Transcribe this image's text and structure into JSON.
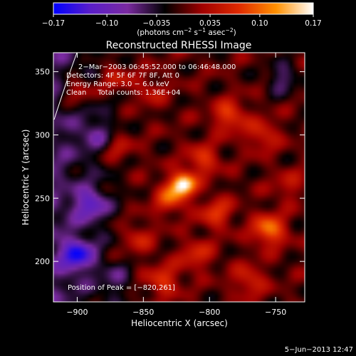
{
  "chart_data": {
    "type": "heatmap",
    "title": "Reconstructed RHESSI Image",
    "xlabel": "Heliocentric X (arcsec)",
    "ylabel": "Heliocentric Y (arcsec)",
    "xlim": [
      -918,
      -728
    ],
    "ylim": [
      168,
      365
    ],
    "x_ticks": [
      -900,
      -850,
      -800,
      -750
    ],
    "y_ticks": [
      200,
      250,
      300,
      350
    ],
    "colorbar": {
      "range": [
        -0.17,
        0.17
      ],
      "ticks": [
        -0.17,
        -0.1,
        -0.035,
        0.035,
        0.1,
        0.17
      ],
      "tick_labels": [
        "−0.17",
        "−0.10",
        "−0.035",
        "0.035",
        "0.10",
        "0.17"
      ],
      "label_main": "(photons cm",
      "label_exp1": "−2",
      "label_mid1": " s",
      "label_exp2": "−1",
      "label_mid2": " asec",
      "label_exp3": "−2",
      "label_end": ")",
      "stops": [
        "#0000ff",
        "#5a1ec8",
        "#7a2aa0",
        "#000000",
        "#a00000",
        "#e02a00",
        "#ff9000",
        "#ffffff"
      ]
    },
    "annotations": [
      "2−Mar−2003 06:45:52.000 to 06:46:48.000",
      "Detectors: 4F 5F 6F 7F 8F, Att 0",
      "Energy Range: 3.0 − 6.0 keV",
      "Clean     Total counts: 1.36E+04"
    ],
    "peak_label": "Position of Peak = [−820,261]",
    "peak": {
      "x": -820,
      "y": 261,
      "value": 0.17
    },
    "sources": [
      {
        "x": -820,
        "y": 261,
        "value": 0.17
      },
      {
        "x": -830,
        "y": 250,
        "value": 0.08
      },
      {
        "x": -755,
        "y": 225,
        "value": 0.11
      },
      {
        "x": -900,
        "y": 335,
        "value": 0.07
      },
      {
        "x": -872,
        "y": 345,
        "value": 0.06
      },
      {
        "x": -785,
        "y": 315,
        "value": 0.08
      },
      {
        "x": -805,
        "y": 280,
        "value": 0.07
      },
      {
        "x": -835,
        "y": 185,
        "value": 0.07
      },
      {
        "x": -770,
        "y": 185,
        "value": 0.06
      },
      {
        "x": -795,
        "y": 238,
        "value": 0.07
      },
      {
        "x": -855,
        "y": 218,
        "value": 0.05
      },
      {
        "x": -760,
        "y": 300,
        "value": 0.06
      },
      {
        "x": -870,
        "y": 290,
        "value": 0.05
      },
      {
        "x": -740,
        "y": 260,
        "value": 0.04
      },
      {
        "x": -810,
        "y": 205,
        "value": 0.06
      },
      {
        "x": -845,
        "y": 335,
        "value": 0.04
      },
      {
        "x": -890,
        "y": 245,
        "value": -0.09
      },
      {
        "x": -900,
        "y": 205,
        "value": -0.12
      },
      {
        "x": -885,
        "y": 300,
        "value": -0.05
      },
      {
        "x": -745,
        "y": 345,
        "value": -0.06
      },
      {
        "x": -870,
        "y": 185,
        "value": -0.04
      }
    ]
  },
  "footer": {
    "date": "5−Jun−2013 12:47"
  }
}
